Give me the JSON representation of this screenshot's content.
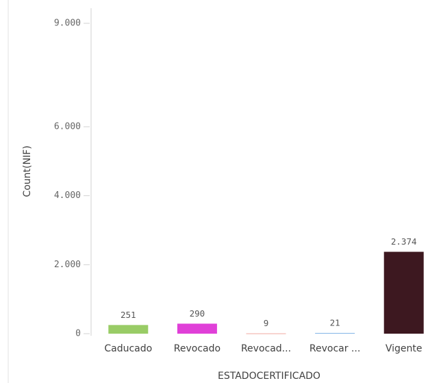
{
  "chart_data": {
    "type": "bar",
    "x_label": "ESTADOCERTIFICADO",
    "y_label": "Count(NIF)",
    "categories": [
      "Caducado",
      "Revocado",
      "Revocad...",
      "Revocar ...",
      "Vigente"
    ],
    "values": [
      251,
      290,
      9,
      21,
      2374
    ],
    "value_labels": [
      "251",
      "290",
      "9",
      "21",
      "2.374"
    ],
    "colors": [
      "#99cc66",
      "#e040d8",
      "#f0a8a0",
      "#88b8e8",
      "#3d1820"
    ],
    "ylim": [
      0,
      9000
    ],
    "yticks": [
      0,
      {
        "value": 2000,
        "label": "2.000"
      },
      {
        "value": 4000,
        "label": "4.000"
      },
      {
        "value": 6000,
        "label": "6.000"
      },
      {
        "value": 9000,
        "label": "9.000"
      }
    ]
  }
}
